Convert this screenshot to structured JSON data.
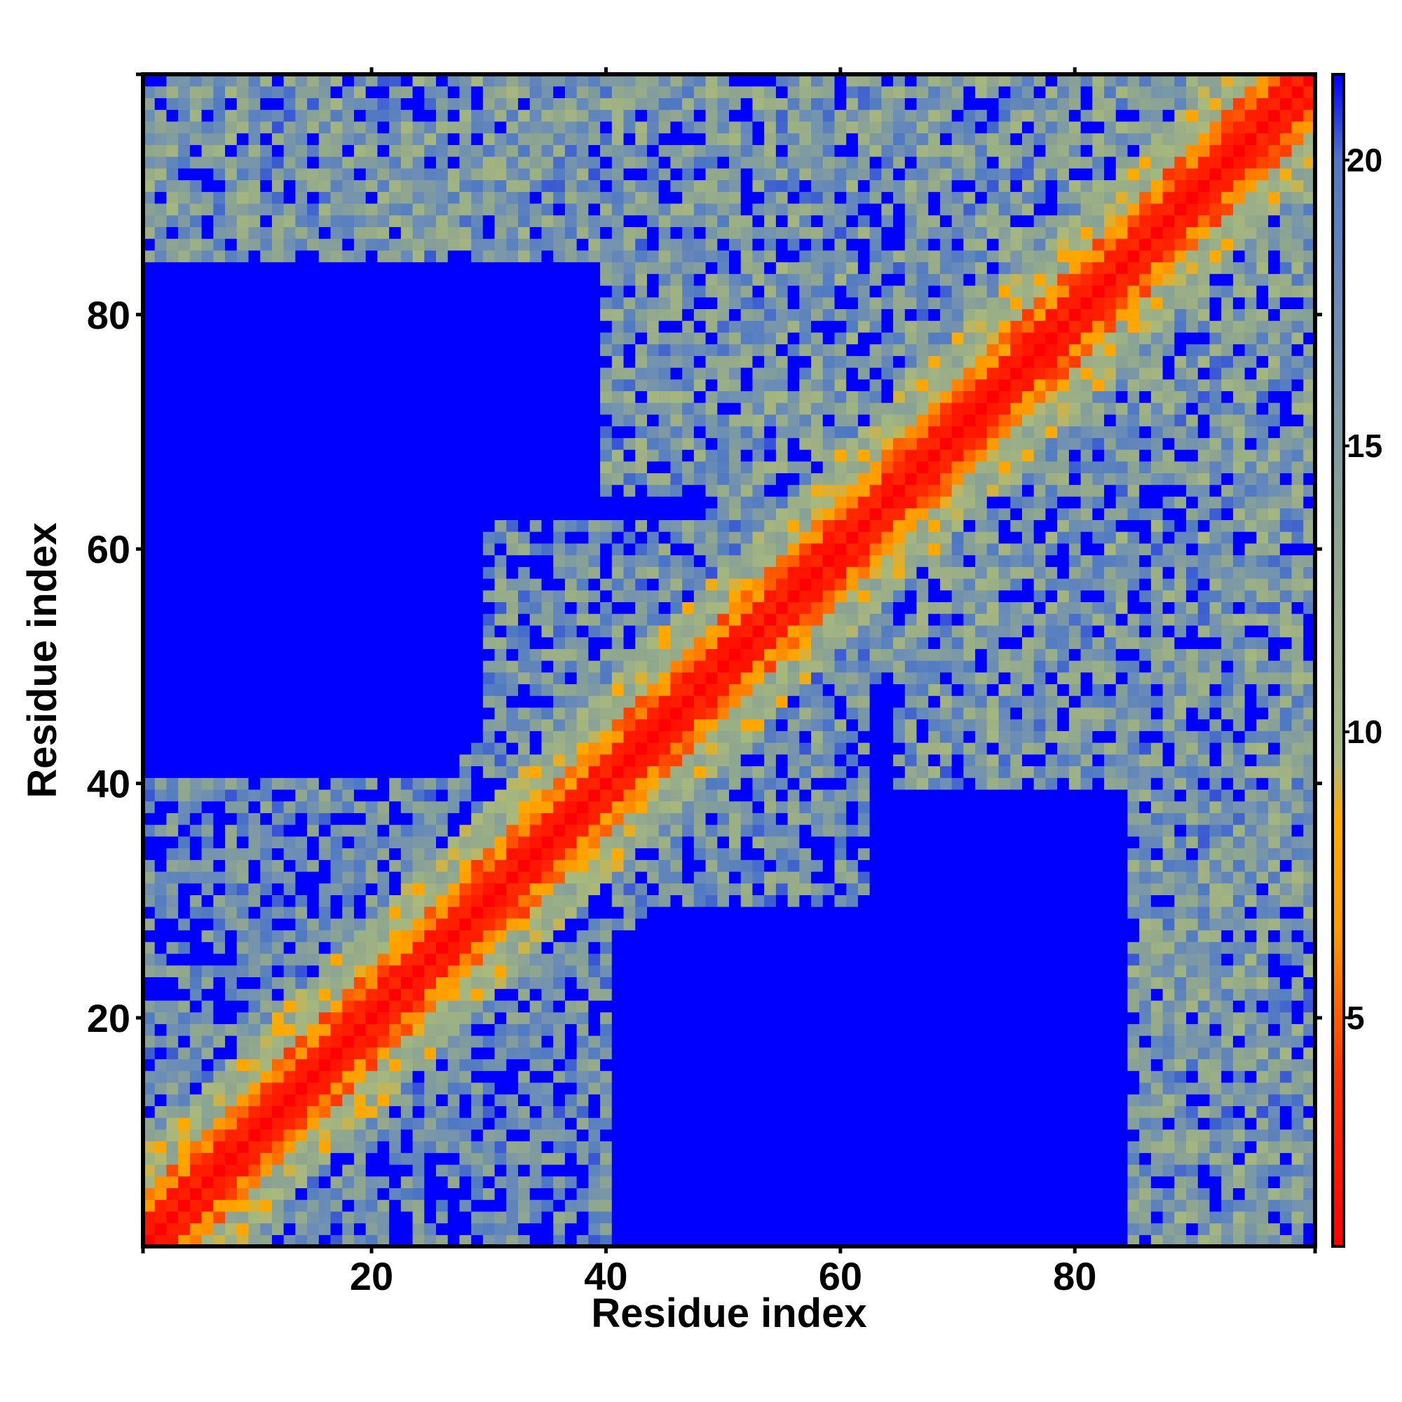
{
  "chart_data": {
    "type": "heatmap",
    "title": "",
    "xlabel": "Residue index",
    "ylabel": "Residue index",
    "n_residues": 100,
    "xlim": [
      0.5,
      100.5
    ],
    "ylim": [
      0.5,
      100.5
    ],
    "x_ticks": [
      20,
      40,
      60,
      80
    ],
    "y_ticks": [
      20,
      40,
      60,
      80
    ],
    "x_tick_labels": [
      "20",
      "40",
      "60",
      "80"
    ],
    "y_tick_labels": [
      "20",
      "40",
      "60",
      "80"
    ],
    "grid": false,
    "colorbar": {
      "range": [
        1,
        21.5
      ],
      "ticks": [
        5,
        10,
        15,
        20
      ],
      "tick_labels": [
        "5",
        "10",
        "15",
        "20"
      ],
      "position": "right",
      "stops": [
        {
          "value": 1,
          "color": "#ff0000"
        },
        {
          "value": 4,
          "color": "#ff3300"
        },
        {
          "value": 6.5,
          "color": "#ff9900"
        },
        {
          "value": 8.5,
          "color": "#ffaa00"
        },
        {
          "value": 9.5,
          "color": "#a9b97c"
        },
        {
          "value": 13,
          "color": "#8fa68f"
        },
        {
          "value": 17,
          "color": "#6e8fb4"
        },
        {
          "value": 20,
          "color": "#4f79c4"
        },
        {
          "value": 21.5,
          "color": "#0000ff"
        }
      ]
    },
    "values_description_hidden": false,
    "distance_cap": 21.5,
    "contact_bands": [
      {
        "i": [
          8,
          38
        ],
        "j": [
          8,
          38
        ],
        "pattern": "diagonal"
      },
      {
        "i": [
          38,
          70
        ],
        "j": [
          38,
          70
        ],
        "pattern": "diagonal"
      },
      {
        "i": [
          70,
          100
        ],
        "j": [
          70,
          100
        ],
        "pattern": "diagonal"
      },
      {
        "i": [
          1,
          40
        ],
        "j": [
          85,
          100
        ],
        "pattern": "offdiag"
      },
      {
        "i": [
          40,
          75
        ],
        "j": [
          65,
          100
        ],
        "pattern": "offdiag"
      },
      {
        "i": [
          85,
          100
        ],
        "j": [
          1,
          40
        ],
        "pattern": "offdiag"
      },
      {
        "i": [
          65,
          100
        ],
        "j": [
          40,
          75
        ],
        "pattern": "offdiag"
      },
      {
        "i": [
          30,
          55
        ],
        "j": [
          40,
          62
        ],
        "pattern": "offdiag"
      },
      {
        "i": [
          40,
          62
        ],
        "j": [
          30,
          55
        ],
        "pattern": "offdiag"
      }
    ],
    "colors": {
      "near": "#ff0000",
      "close": "#ff9900",
      "mid": "#a9b97c",
      "far": "#6e8fb4",
      "cap": "#0000ff"
    }
  }
}
